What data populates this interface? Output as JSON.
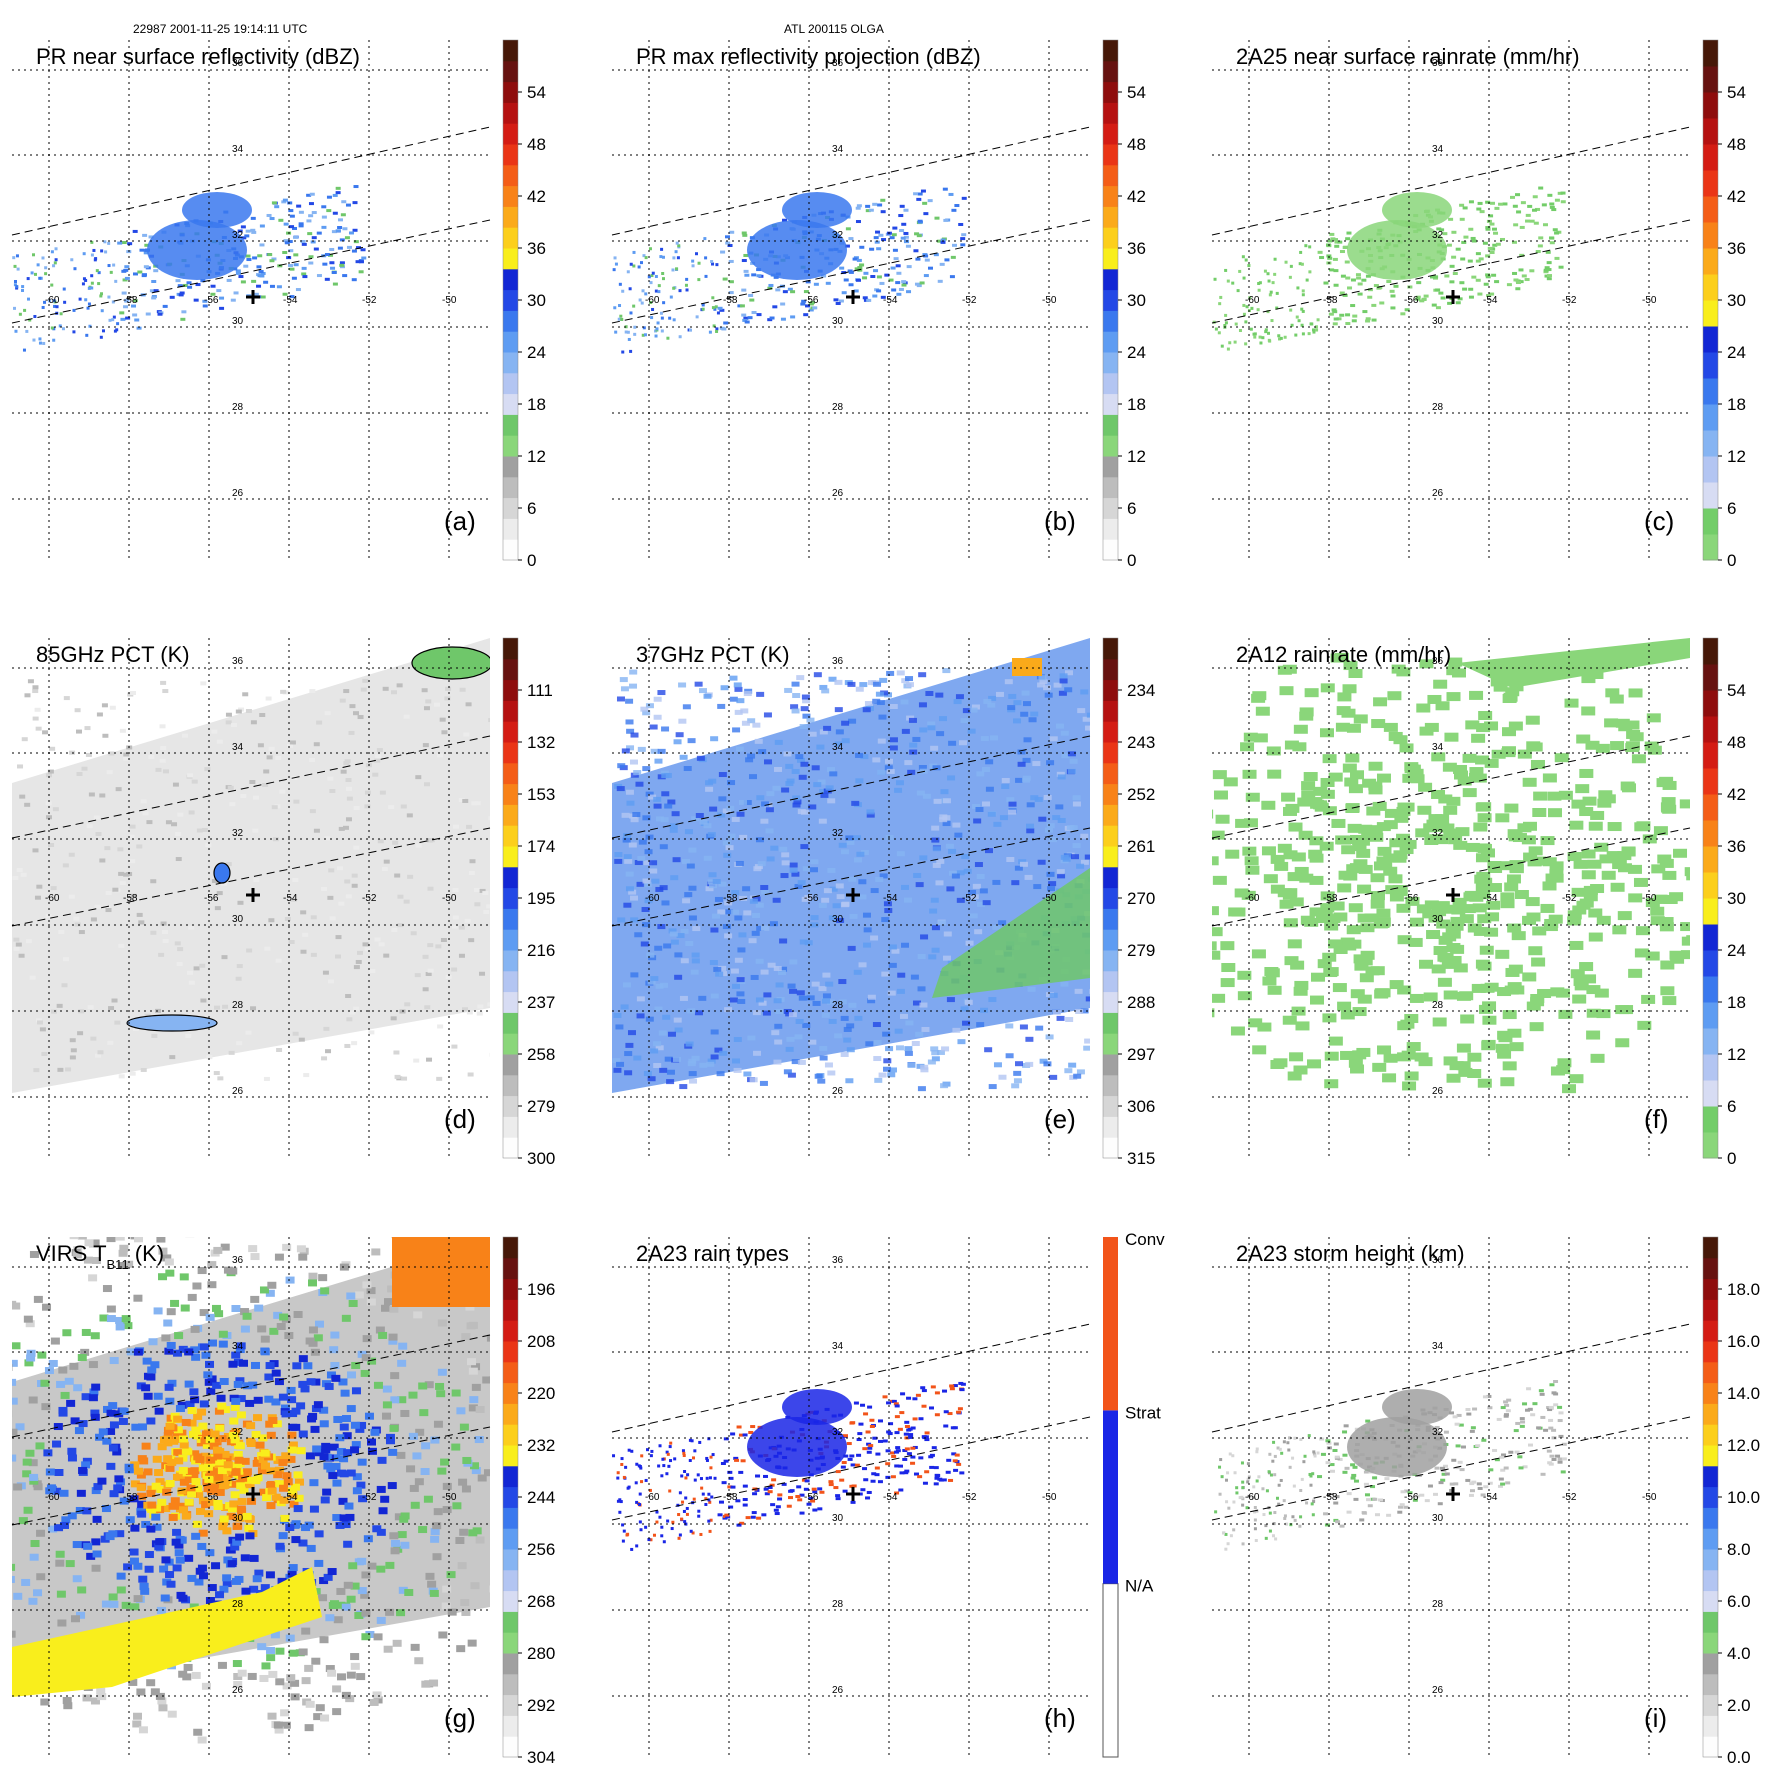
{
  "header": {
    "left": "22987 2001-11-25 19:14:11 UTC",
    "center": "ATL 200115 OLGA"
  },
  "gridLabels": {
    "lons": [
      "-60",
      "-58",
      "-56",
      "-54",
      "-52",
      "-50"
    ],
    "lats": [
      "36",
      "34",
      "32",
      "30",
      "28",
      "26"
    ]
  },
  "panels": [
    {
      "id": "a",
      "title": "PR near surface reflectivity (dBZ)",
      "label": "(a)",
      "kind": "reflectivity",
      "ticks": [
        "54",
        "48",
        "42",
        "36",
        "30",
        "24",
        "18",
        "12",
        "6",
        "0"
      ],
      "palette": "refl"
    },
    {
      "id": "b",
      "title": "PR max reflectivity projection (dBZ)",
      "label": "(b)",
      "kind": "reflectivity",
      "ticks": [
        "54",
        "48",
        "42",
        "36",
        "30",
        "24",
        "18",
        "12",
        "6",
        "0"
      ],
      "palette": "refl"
    },
    {
      "id": "c",
      "title": "2A25 near surface rainrate (mm/hr)",
      "label": "(c)",
      "kind": "rainrate",
      "ticks": [
        "54",
        "48",
        "42",
        "36",
        "30",
        "24",
        "18",
        "12",
        "6",
        "0"
      ],
      "palette": "rain"
    },
    {
      "id": "d",
      "title": "85GHz PCT (K)",
      "label": "(d)",
      "kind": "pct85",
      "ticks": [
        "111",
        "132",
        "153",
        "174",
        "195",
        "216",
        "237",
        "258",
        "279",
        "300"
      ],
      "palette": "refl"
    },
    {
      "id": "e",
      "title": "37GHz PCT (K)",
      "label": "(e)",
      "kind": "pct37",
      "ticks": [
        "234",
        "243",
        "252",
        "261",
        "270",
        "279",
        "288",
        "297",
        "306",
        "315"
      ],
      "palette": "refl"
    },
    {
      "id": "f",
      "title": "2A12 rainrate (mm/hr)",
      "label": "(f)",
      "kind": "rain2a12",
      "ticks": [
        "54",
        "48",
        "42",
        "36",
        "30",
        "24",
        "18",
        "12",
        "6",
        "0"
      ],
      "palette": "rain"
    },
    {
      "id": "g",
      "title": "VIRS T",
      "titleSub": "B11",
      "titleTail": " (K)",
      "label": "(g)",
      "kind": "virs",
      "ticks": [
        "196",
        "208",
        "220",
        "232",
        "244",
        "256",
        "268",
        "280",
        "292",
        "304"
      ],
      "palette": "refl"
    },
    {
      "id": "h",
      "title": "2A23 rain types",
      "label": "(h)",
      "kind": "raintype",
      "ticks": [
        "Conv",
        "Strat",
        "N/A"
      ],
      "palette": "type"
    },
    {
      "id": "i",
      "title": "2A23 storm height (km)",
      "label": "(i)",
      "kind": "height",
      "ticks": [
        "18.0",
        "16.0",
        "14.0",
        "12.0",
        "10.0",
        "8.0",
        "6.0",
        "4.0",
        "2.0",
        "0.0"
      ],
      "palette": "refl"
    }
  ],
  "colors": {
    "refl": [
      "#fdfdfd",
      "#ececec",
      "#d6d6d6",
      "#bdbdbd",
      "#a0a0a0",
      "#8ad67a",
      "#6fc76a",
      "#d7dcf3",
      "#b3c5f2",
      "#86b4f2",
      "#5e9cf2",
      "#3a78ee",
      "#2348e6",
      "#1226d4",
      "#f9ee1c",
      "#fccf1c",
      "#fbaa1a",
      "#f88218",
      "#f45d17",
      "#ea3516",
      "#d41c14",
      "#b51111",
      "#8e0d0d",
      "#661210",
      "#461808"
    ],
    "rain": [
      "#8ad67a",
      "#73cd69",
      "#d7dcf3",
      "#b3c5f2",
      "#86b4f2",
      "#5e9cf2",
      "#3a78ee",
      "#2348e6",
      "#1226d4",
      "#f9ee1c",
      "#fccf1c",
      "#fbaa1a",
      "#f88218",
      "#f45d17",
      "#ea3516",
      "#d41c14",
      "#b51111",
      "#8e0d0d",
      "#661210",
      "#461808"
    ],
    "type": [
      "#ffffff",
      "#1a26e6",
      "#f2541a"
    ]
  }
}
